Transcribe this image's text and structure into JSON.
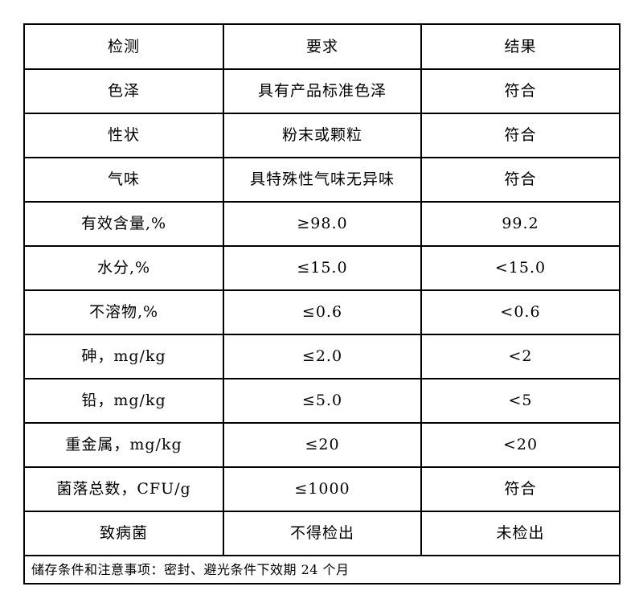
{
  "table": {
    "header": {
      "test": "检测",
      "requirement": "要求",
      "result": "结果"
    },
    "rows": [
      {
        "test": "色泽",
        "requirement": "具有产品标准色泽",
        "result": "符合"
      },
      {
        "test": "性状",
        "requirement": "粉末或颗粒",
        "result": "符合"
      },
      {
        "test": "气味",
        "requirement": "具特殊性气味无异味",
        "result": "符合"
      },
      {
        "test": "有效含量,%",
        "requirement": "≥98.0",
        "result": "99.2"
      },
      {
        "test": "水分,%",
        "requirement": "≤15.0",
        "result": "<15.0"
      },
      {
        "test": "不溶物,%",
        "requirement": "≤0.6",
        "result": "<0.6"
      },
      {
        "test": "砷，mg/kg",
        "requirement": "≤2.0",
        "result": "<2"
      },
      {
        "test": "铅，mg/kg",
        "requirement": "≤5.0",
        "result": "<5"
      },
      {
        "test": "重金属，mg/kg",
        "requirement": "≤20",
        "result": "<20"
      },
      {
        "test": "菌落总数，CFU/g",
        "requirement": "≤1000",
        "result": "符合"
      },
      {
        "test": "致病菌",
        "requirement": "不得检出",
        "result": "未检出"
      }
    ],
    "footer_note": "储存条件和注意事项：密封、避光条件下效期 24 个月"
  }
}
